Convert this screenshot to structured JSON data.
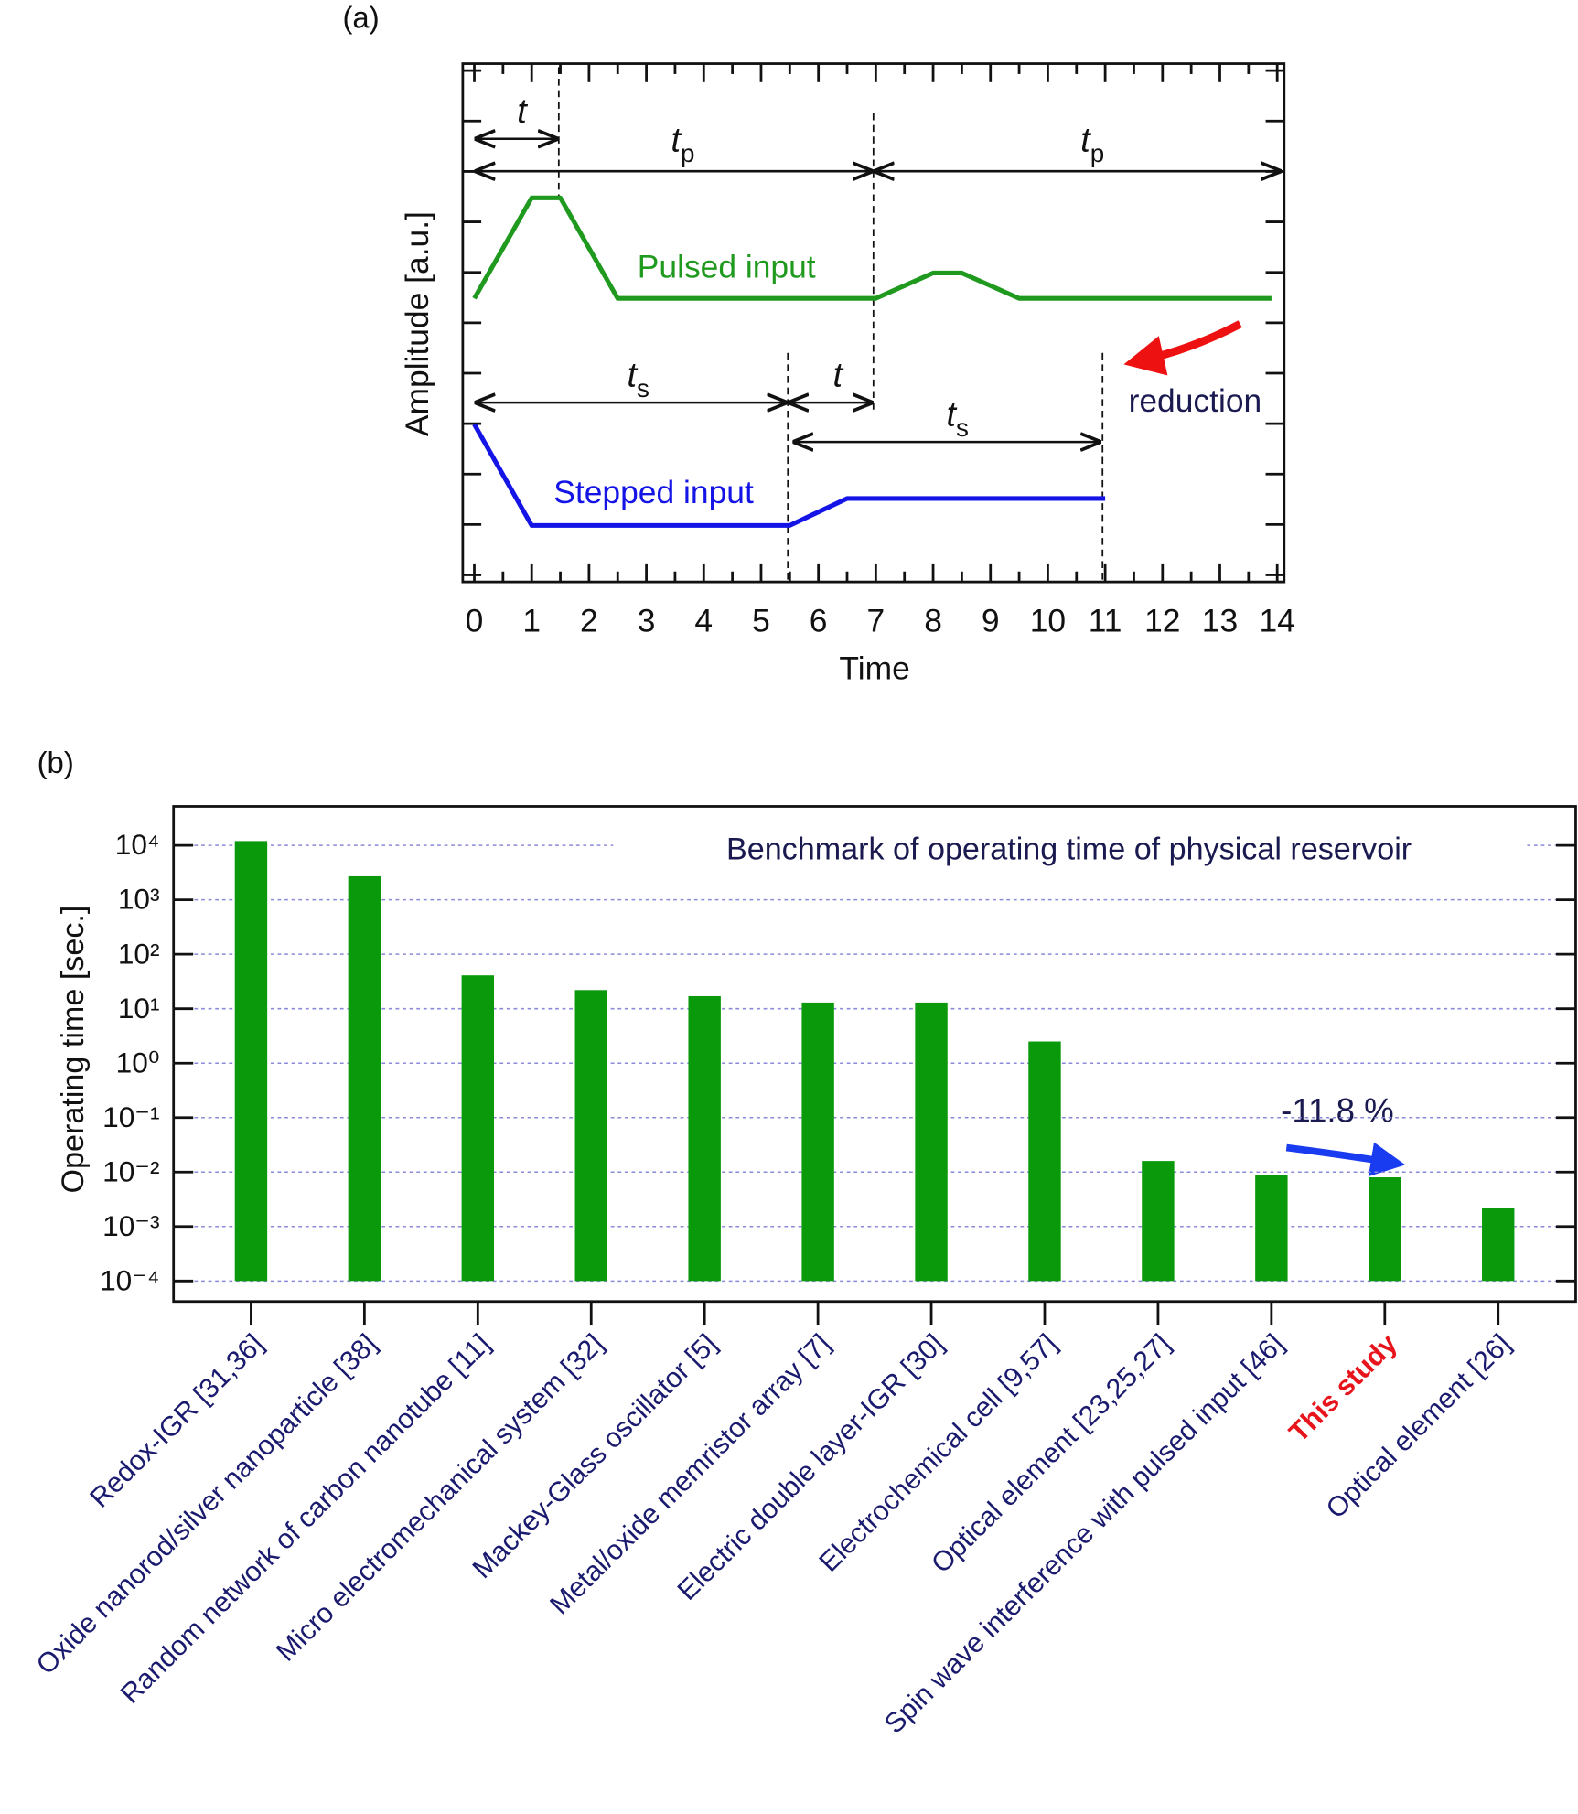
{
  "chart_data": [
    {
      "type": "line",
      "panel_label": "(a)",
      "x_label": "Time",
      "y_label": "Amplitude [a.u.]",
      "xlim": [
        0,
        14
      ],
      "xticks": [
        0,
        1,
        2,
        3,
        4,
        5,
        6,
        7,
        8,
        9,
        10,
        11,
        12,
        13,
        14
      ],
      "ylim": [
        0,
        10
      ],
      "series": [
        {
          "name": "Pulsed input",
          "color": "#1f9a1f",
          "x": [
            0,
            1,
            1.5,
            2.5,
            7,
            8,
            8.5,
            9.5,
            13.9
          ],
          "values": [
            5.47,
            7.41,
            7.41,
            5.47,
            5.47,
            5.96,
            5.96,
            5.47,
            5.47
          ]
        },
        {
          "name": "Stepped input",
          "color": "#1414e6",
          "x": [
            0,
            1,
            5.5,
            6.5,
            11
          ],
          "values": [
            3.04,
            1.09,
            1.09,
            1.61,
            1.61
          ]
        }
      ],
      "annotations": [
        "reduction"
      ],
      "interval_labels": [
        {
          "text": "t"
        },
        {
          "text": "t",
          "sub": "p"
        },
        {
          "text": "t",
          "sub": "p"
        },
        {
          "text": "t",
          "sub": "s"
        },
        {
          "text": "t"
        },
        {
          "text": "t",
          "sub": "s"
        }
      ]
    },
    {
      "type": "bar",
      "panel_label": "(b)",
      "title": "Benchmark of operating time of physical reservoir",
      "y_label": "Operating time [sec.]",
      "log_scale": true,
      "grid": true,
      "color": "#0a990a",
      "categories": [
        "Redox-IGR [31,36]",
        "Oxide nanorod/silver nanoparticle [38]",
        "Random network of carbon nanotube [11]",
        "Micro electromechanical system [32]",
        "Mackey-Glass oscillator [5]",
        "Metal/oxide memristor array [7]",
        "Electric double layer-IGR [30]",
        "Electrochemical cell [9,57]",
        "Optical element [23,25,27]",
        "Spin wave interference with pulsed input [46]",
        "This study",
        "Optical element [26]"
      ],
      "label_colors": [
        "#1a1a6e",
        "#1a1a6e",
        "#1a1a6e",
        "#1a1a6e",
        "#1a1a6e",
        "#1a1a6e",
        "#1a1a6e",
        "#1a1a6e",
        "#1a1a6e",
        "#1a1a6e",
        "#e8141c",
        "#1a1a6e"
      ],
      "values": [
        12000,
        2700,
        41,
        22,
        17,
        13,
        13,
        2.5,
        0.016,
        0.009,
        0.008,
        0.0022
      ],
      "ylim": [
        4.2e-05,
        52000
      ],
      "yticks": [
        {
          "value": 0.0001,
          "label": "10⁻⁴"
        },
        {
          "value": 0.001,
          "label": "10⁻³"
        },
        {
          "value": 0.01,
          "label": "10⁻²"
        },
        {
          "value": 0.1,
          "label": "10⁻¹"
        },
        {
          "value": 1,
          "label": "10⁰"
        },
        {
          "value": 10,
          "label": "10¹"
        },
        {
          "value": 100,
          "label": "10²"
        },
        {
          "value": 1000,
          "label": "10³"
        },
        {
          "value": 10000,
          "label": "10⁴"
        }
      ],
      "annotations": [
        "-11.8 %"
      ]
    }
  ]
}
